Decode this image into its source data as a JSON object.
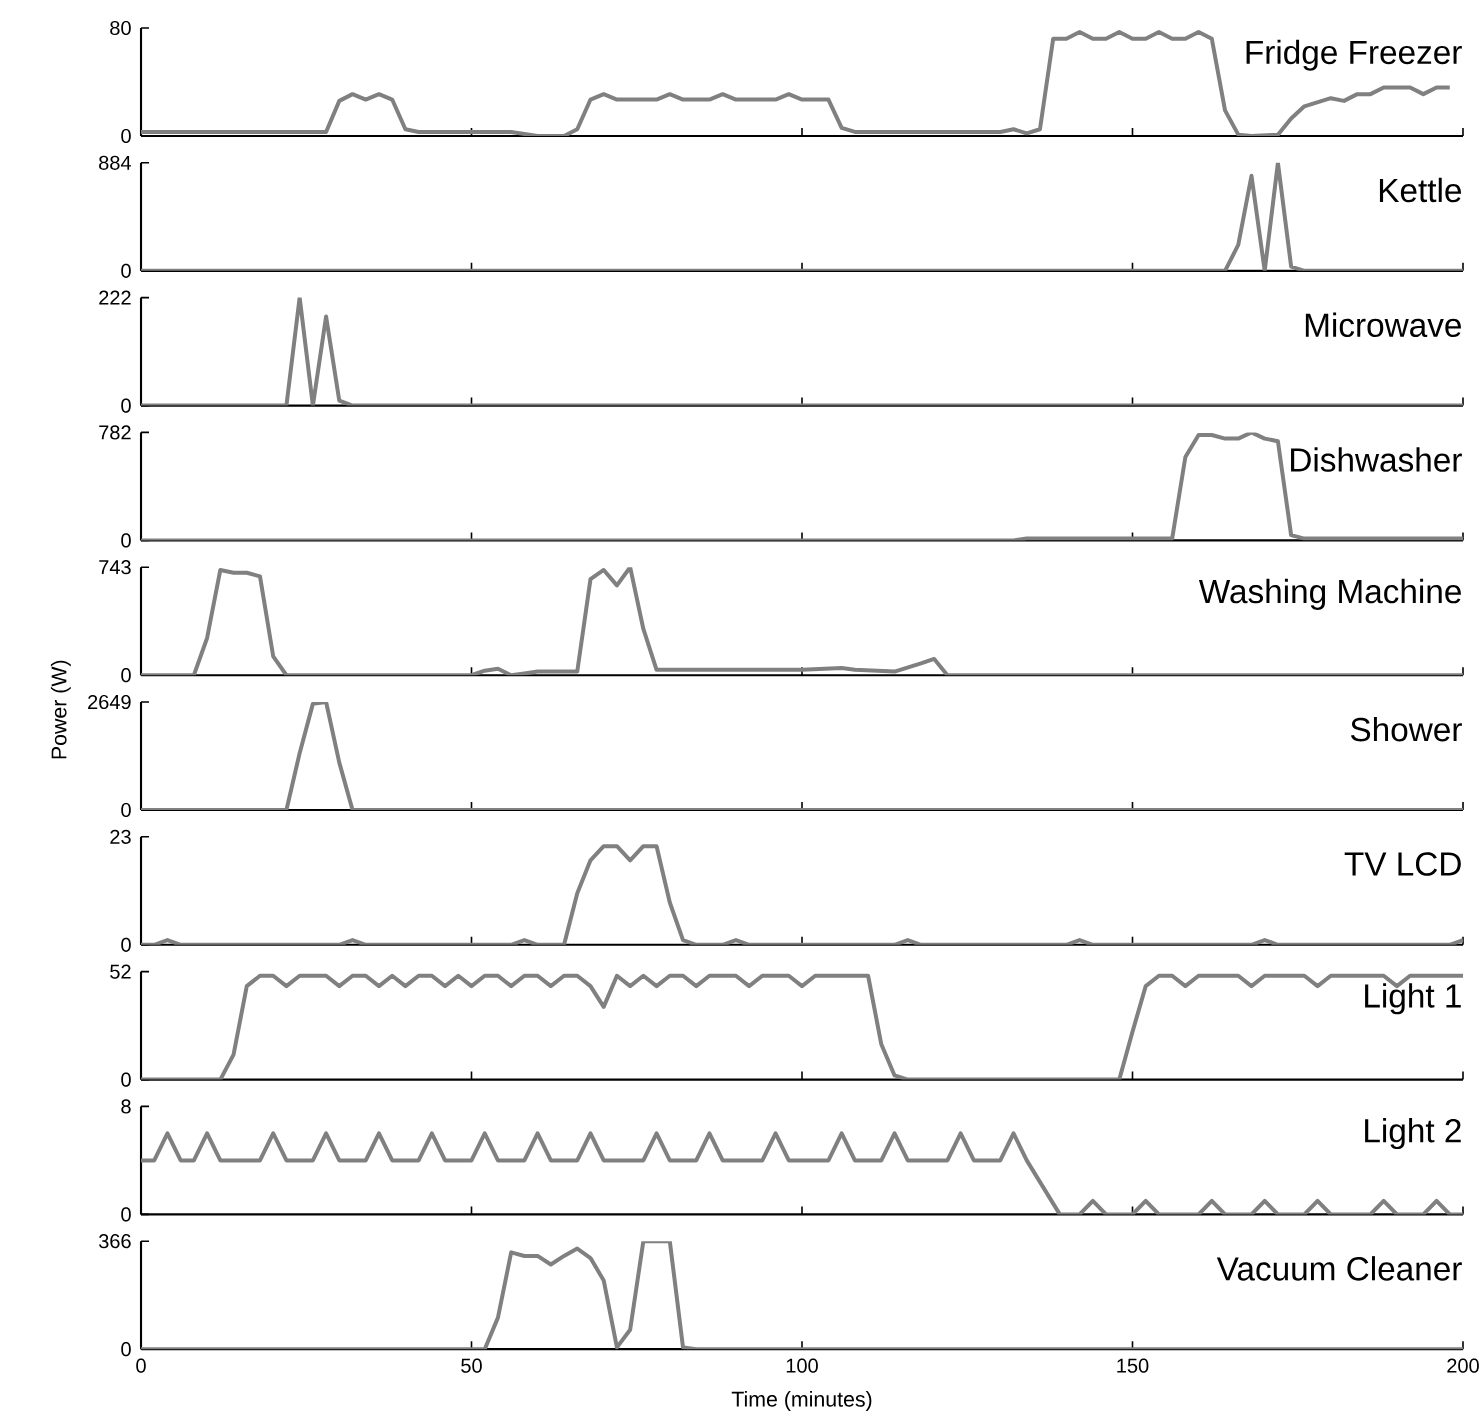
{
  "chart_data": [
    {
      "type": "line",
      "title": "Fridge Freezer",
      "color": "#808080",
      "marker": "none",
      "tick_labels": "y",
      "xlim": [
        0,
        200
      ],
      "ylim": [
        0,
        80
      ],
      "xticks": [
        0,
        50,
        100,
        150,
        200
      ],
      "yticks": [
        0,
        80
      ],
      "x": [
        0,
        10,
        20,
        28,
        30,
        32,
        34,
        36,
        38,
        40,
        42,
        44,
        56,
        60,
        64,
        66,
        68,
        70,
        72,
        78,
        80,
        82,
        86,
        88,
        90,
        96,
        98,
        100,
        104,
        106,
        108,
        130,
        132,
        134,
        136,
        138,
        140,
        142,
        144,
        146,
        148,
        150,
        152,
        154,
        156,
        158,
        160,
        162,
        164,
        166,
        168,
        172,
        174,
        176,
        180,
        182,
        184,
        186,
        188,
        192,
        194,
        196,
        198
      ],
      "values": [
        3,
        3,
        3,
        3,
        26,
        31,
        27,
        31,
        27,
        5,
        3,
        3,
        3,
        0,
        0,
        5,
        27,
        31,
        27,
        27,
        31,
        27,
        27,
        31,
        27,
        27,
        31,
        27,
        27,
        6,
        3,
        3,
        5,
        2,
        5,
        72,
        72,
        77,
        72,
        72,
        77,
        72,
        72,
        77,
        72,
        72,
        77,
        72,
        19,
        1,
        0,
        1,
        13,
        22,
        28,
        26,
        31,
        31,
        36,
        36,
        31,
        36,
        36
      ]
    },
    {
      "type": "line",
      "title": "Kettle",
      "color": "#808080",
      "marker": "none",
      "tick_labels": "y",
      "xlim": [
        0,
        200
      ],
      "ylim": [
        0,
        884
      ],
      "xticks": [
        0,
        50,
        100,
        150,
        200
      ],
      "yticks": [
        0,
        884
      ],
      "x": [
        0,
        164,
        166,
        168,
        170,
        172,
        174,
        176,
        200
      ],
      "values": [
        0,
        0,
        212,
        778,
        0,
        884,
        35,
        0,
        0
      ]
    },
    {
      "type": "line",
      "title": "Microwave",
      "color": "#808080",
      "marker": "none",
      "tick_labels": "y",
      "xlim": [
        0,
        200
      ],
      "ylim": [
        0,
        222
      ],
      "xticks": [
        0,
        50,
        100,
        150,
        200
      ],
      "yticks": [
        0,
        222
      ],
      "x": [
        0,
        22,
        24,
        26,
        28,
        30,
        32,
        200
      ],
      "values": [
        0,
        0,
        222,
        0,
        183,
        10,
        0,
        0
      ]
    },
    {
      "type": "line",
      "title": "Dishwasher",
      "color": "#808080",
      "marker": "none",
      "tick_labels": "y",
      "xlim": [
        0,
        200
      ],
      "ylim": [
        0,
        782
      ],
      "xticks": [
        0,
        50,
        100,
        150,
        200
      ],
      "yticks": [
        0,
        782
      ],
      "x": [
        0,
        132,
        134,
        156,
        158,
        160,
        162,
        164,
        166,
        168,
        170,
        172,
        174,
        176,
        200
      ],
      "values": [
        0,
        0,
        13,
        13,
        604,
        763,
        763,
        737,
        737,
        782,
        737,
        718,
        38,
        13,
        13
      ]
    },
    {
      "type": "line",
      "title": "Washing Machine",
      "ylabel": "Power (W)",
      "color": "#808080",
      "marker": "none",
      "tick_labels": "y",
      "xlim": [
        0,
        200
      ],
      "ylim": [
        0,
        743
      ],
      "xticks": [
        0,
        50,
        100,
        150,
        200
      ],
      "yticks": [
        0,
        743
      ],
      "x": [
        0,
        8,
        10,
        12,
        14,
        16,
        18,
        20,
        22,
        50,
        52,
        54,
        56,
        58,
        60,
        66,
        68,
        70,
        72,
        74,
        76,
        78,
        98,
        100,
        106,
        108,
        114,
        118,
        120,
        122,
        200
      ],
      "values": [
        0,
        0,
        256,
        724,
        705,
        705,
        680,
        130,
        0,
        0,
        31,
        44,
        0,
        12,
        25,
        25,
        661,
        724,
        618,
        743,
        318,
        37,
        37,
        37,
        50,
        37,
        25,
        81,
        112,
        0,
        0
      ]
    },
    {
      "type": "line",
      "title": "Shower",
      "color": "#808080",
      "marker": "none",
      "tick_labels": "y",
      "xlim": [
        0,
        200
      ],
      "ylim": [
        0,
        2649
      ],
      "xticks": [
        0,
        50,
        100,
        150,
        200
      ],
      "yticks": [
        0,
        2649
      ],
      "x": [
        0,
        22,
        24,
        26,
        28,
        30,
        32,
        200
      ],
      "values": [
        0,
        0,
        1394,
        2603,
        2649,
        1162,
        0,
        0
      ]
    },
    {
      "type": "line",
      "title": "TV LCD",
      "color": "#808080",
      "marker": "none",
      "tick_labels": "y",
      "xlim": [
        0,
        200
      ],
      "ylim": [
        0,
        23
      ],
      "xticks": [
        0,
        50,
        100,
        150,
        200
      ],
      "yticks": [
        0,
        23
      ],
      "x": [
        0,
        2,
        4,
        6,
        30,
        32,
        34,
        56,
        58,
        60,
        64,
        66,
        68,
        70,
        72,
        74,
        76,
        78,
        80,
        82,
        84,
        88,
        90,
        92,
        114,
        116,
        118,
        140,
        142,
        144,
        168,
        170,
        172,
        196,
        198,
        200
      ],
      "values": [
        0,
        0,
        1,
        0,
        0,
        1,
        0,
        0,
        1,
        0,
        0,
        11,
        18,
        21,
        21,
        18,
        21,
        21,
        9,
        1,
        0,
        0,
        1,
        0,
        0,
        1,
        0,
        0,
        1,
        0,
        0,
        1,
        0,
        0,
        0,
        1
      ]
    },
    {
      "type": "line",
      "title": "Light 1",
      "color": "#808080",
      "marker": "none",
      "tick_labels": "y",
      "xlim": [
        0,
        200
      ],
      "ylim": [
        0,
        52
      ],
      "xticks": [
        0,
        50,
        100,
        150,
        200
      ],
      "yticks": [
        0,
        52
      ],
      "x": [
        0,
        12,
        14,
        16,
        18,
        20,
        22,
        24,
        26,
        28,
        30,
        32,
        34,
        36,
        38,
        40,
        42,
        44,
        46,
        48,
        50,
        52,
        54,
        56,
        58,
        60,
        62,
        64,
        66,
        68,
        70,
        72,
        74,
        76,
        78,
        80,
        82,
        84,
        86,
        88,
        90,
        92,
        94,
        96,
        98,
        100,
        102,
        104,
        106,
        108,
        110,
        112,
        114,
        116,
        148,
        150,
        152,
        154,
        156,
        158,
        160,
        166,
        168,
        170,
        176,
        178,
        180,
        188,
        190,
        192,
        200
      ],
      "values": [
        0,
        0,
        12,
        45,
        50,
        50,
        45,
        50,
        50,
        50,
        45,
        50,
        50,
        45,
        50,
        45,
        50,
        50,
        45,
        50,
        45,
        50,
        50,
        45,
        50,
        50,
        45,
        50,
        50,
        45,
        35,
        50,
        45,
        50,
        45,
        50,
        50,
        45,
        50,
        50,
        50,
        45,
        50,
        50,
        50,
        45,
        50,
        50,
        50,
        50,
        50,
        17,
        2,
        0,
        0,
        23,
        45,
        50,
        50,
        45,
        50,
        50,
        45,
        50,
        50,
        45,
        50,
        50,
        45,
        50,
        50
      ]
    },
    {
      "type": "line",
      "title": "Light 2",
      "color": "#808080",
      "marker": "none",
      "tick_labels": "y",
      "xlim": [
        0,
        200
      ],
      "ylim": [
        0,
        8
      ],
      "xticks": [
        0,
        50,
        100,
        150,
        200
      ],
      "yticks": [
        0,
        8
      ],
      "x": [
        0,
        2,
        4,
        6,
        8,
        10,
        12,
        18,
        20,
        22,
        26,
        28,
        30,
        34,
        36,
        38,
        42,
        44,
        46,
        50,
        52,
        54,
        58,
        60,
        62,
        66,
        68,
        70,
        76,
        78,
        80,
        84,
        86,
        88,
        94,
        96,
        98,
        104,
        106,
        108,
        112,
        114,
        116,
        122,
        124,
        126,
        130,
        132,
        134,
        139,
        142,
        144,
        146,
        150,
        152,
        154,
        160,
        162,
        164,
        168,
        170,
        172,
        176,
        178,
        180,
        186,
        188,
        190,
        194,
        196,
        198,
        200
      ],
      "values": [
        4,
        4,
        6,
        4,
        4,
        6,
        4,
        4,
        6,
        4,
        4,
        6,
        4,
        4,
        6,
        4,
        4,
        6,
        4,
        4,
        6,
        4,
        4,
        6,
        4,
        4,
        6,
        4,
        4,
        6,
        4,
        4,
        6,
        4,
        4,
        6,
        4,
        4,
        6,
        4,
        4,
        6,
        4,
        4,
        6,
        4,
        4,
        6,
        4,
        0,
        0,
        1,
        0,
        0,
        1,
        0,
        0,
        1,
        0,
        0,
        1,
        0,
        0,
        1,
        0,
        0,
        1,
        0,
        0,
        1,
        0,
        0
      ]
    },
    {
      "type": "line",
      "title": "Vacuum Cleaner",
      "xlabel": "Time (minutes)",
      "color": "#808080",
      "marker": "none",
      "xlim": [
        0,
        200
      ],
      "ylim": [
        0,
        366
      ],
      "xticks": [
        0,
        50,
        100,
        150,
        200
      ],
      "yticks": [
        0,
        366
      ],
      "x": [
        0,
        52,
        54,
        56,
        58,
        60,
        62,
        64,
        66,
        68,
        70,
        72,
        74,
        76,
        78,
        80,
        82,
        84,
        200
      ],
      "values": [
        0,
        0,
        107,
        328,
        316,
        316,
        287,
        316,
        341,
        309,
        233,
        6,
        66,
        366,
        366,
        366,
        6,
        0,
        0
      ]
    }
  ]
}
